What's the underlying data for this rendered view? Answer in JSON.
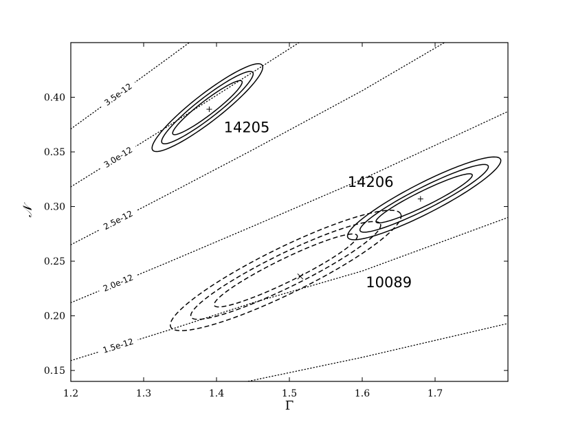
{
  "chart_data": {
    "type": "contour",
    "xlabel": "Γ",
    "ylabel": "𝒩",
    "xlim": [
      1.2,
      1.8
    ],
    "ylim": [
      0.14,
      0.45
    ],
    "x_ticks": [
      1.2,
      1.3,
      1.4,
      1.5,
      1.6,
      1.7
    ],
    "x_tick_labels": [
      "1.2",
      "1.3",
      "1.4",
      "1.5",
      "1.6",
      "1.7"
    ],
    "y_ticks": [
      0.15,
      0.2,
      0.25,
      0.3,
      0.35,
      0.4
    ],
    "y_tick_labels": [
      "0.15",
      "0.20",
      "0.25",
      "0.30",
      "0.35",
      "0.40"
    ],
    "grid": false,
    "flux_contours": [
      {
        "label": "1.5e-12",
        "points": [
          [
            1.2,
            0.159
          ],
          [
            1.33,
            0.186
          ],
          [
            1.45,
            0.212
          ],
          [
            1.6,
            0.241
          ],
          [
            1.8,
            0.29
          ]
        ]
      },
      {
        "label": "2.0e-12",
        "points": [
          [
            1.2,
            0.212
          ],
          [
            1.33,
            0.248
          ],
          [
            1.45,
            0.282
          ],
          [
            1.6,
            0.325
          ],
          [
            1.8,
            0.387
          ]
        ]
      },
      {
        "label": "2.5e-12",
        "points": [
          [
            1.2,
            0.265
          ],
          [
            1.33,
            0.31
          ],
          [
            1.45,
            0.352
          ],
          [
            1.6,
            0.406
          ],
          [
            1.8,
            0.484
          ]
        ]
      },
      {
        "label": "3.0e-12",
        "points": [
          [
            1.2,
            0.318
          ],
          [
            1.33,
            0.372
          ],
          [
            1.45,
            0.423
          ],
          [
            1.6,
            0.487
          ]
        ]
      },
      {
        "label": "3.5e-12",
        "points": [
          [
            1.2,
            0.371
          ],
          [
            1.33,
            0.434
          ],
          [
            1.45,
            0.493
          ]
        ]
      },
      {
        "label": "",
        "points": [
          [
            1.2,
            0.106
          ],
          [
            1.33,
            0.124
          ],
          [
            1.45,
            0.141
          ],
          [
            1.6,
            0.162
          ],
          [
            1.8,
            0.193
          ]
        ]
      }
    ],
    "series": [
      {
        "name": "14205",
        "style": "solid",
        "best_fit": [
          1.39,
          0.389
        ],
        "marker": "+",
        "ellipses": [
          {
            "center": [
              1.3875,
              0.3905
            ],
            "half_length": [
              0.0755,
              0.0385
            ],
            "half_width": [
              0.0085,
              -0.0115
            ]
          },
          {
            "center": [
              1.3875,
              0.3905
            ],
            "half_length": [
              0.0625,
              0.032
            ],
            "half_width": [
              0.0065,
              -0.0085
            ]
          },
          {
            "center": [
              1.3875,
              0.3905
            ],
            "half_length": [
              0.0475,
              0.024
            ],
            "half_width": [
              0.0045,
              -0.006
            ]
          }
        ]
      },
      {
        "name": "14206",
        "style": "solid",
        "best_fit": [
          1.68,
          0.307
        ],
        "marker": "+",
        "ellipses": [
          {
            "center": [
              1.685,
              0.3075
            ],
            "half_length": [
              0.105,
              0.0355
            ],
            "half_width": [
              0.007,
              -0.0132
            ]
          },
          {
            "center": [
              1.685,
              0.3075
            ],
            "half_length": [
              0.088,
              0.0295
            ],
            "half_width": [
              0.005,
              -0.0095
            ]
          },
          {
            "center": [
              1.685,
              0.3075
            ],
            "half_length": [
              0.066,
              0.0215
            ],
            "half_width": [
              0.0035,
              -0.0065
            ]
          }
        ]
      },
      {
        "name": "10089",
        "style": "dashed",
        "best_fit": [
          1.515,
          0.236
        ],
        "marker": "x",
        "ellipses": [
          {
            "center": [
              1.495,
              0.2415
            ],
            "half_length": [
              0.158,
              0.0515
            ],
            "half_width": [
              0.012,
              -0.0195
            ]
          },
          {
            "center": [
              1.495,
              0.2415
            ],
            "half_length": [
              0.13,
              0.0425
            ],
            "half_width": [
              0.0095,
              -0.014
            ]
          },
          {
            "center": [
              1.495,
              0.2415
            ],
            "half_length": [
              0.098,
              0.032
            ],
            "half_width": [
              0.007,
              -0.0095
            ]
          }
        ]
      }
    ],
    "annotations": [
      {
        "text": "14205",
        "x": 1.41,
        "y": 0.368
      },
      {
        "text": "14206",
        "x": 1.58,
        "y": 0.318
      },
      {
        "text": "10089",
        "x": 1.605,
        "y": 0.226
      }
    ]
  }
}
